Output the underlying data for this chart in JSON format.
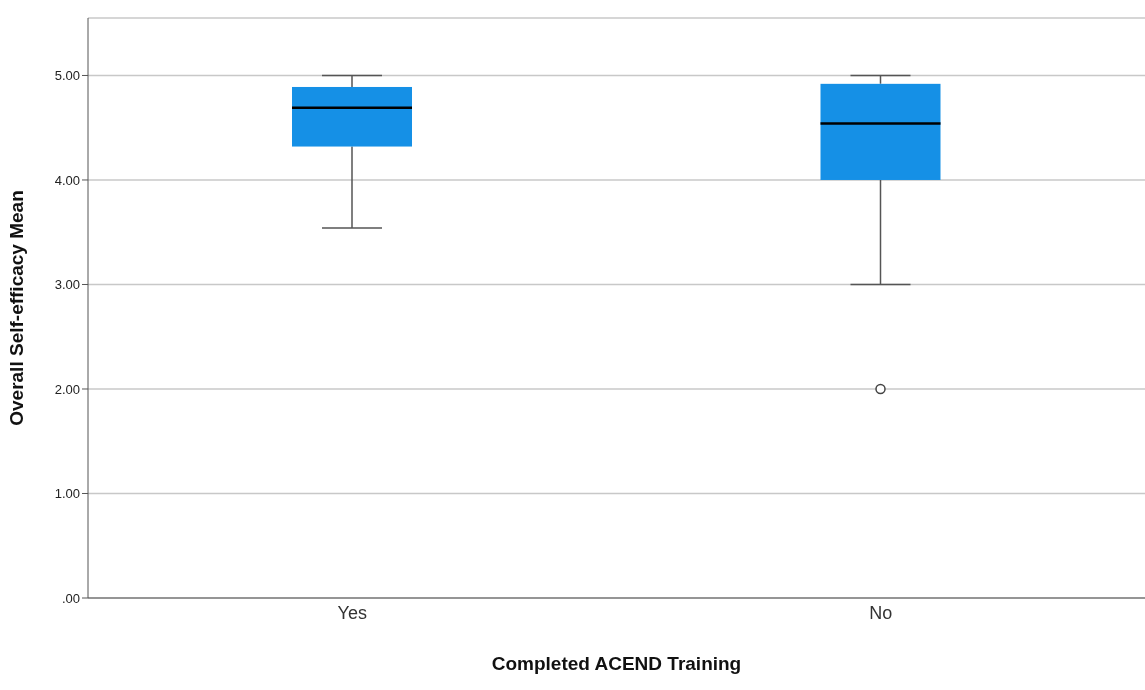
{
  "chart_data": {
    "type": "box",
    "xlabel": "Completed ACEND Training",
    "ylabel": "Overall Self-efficacy Mean",
    "categories": [
      "Yes",
      "No"
    ],
    "color": "#1590e6",
    "boxes": [
      {
        "low": 3.54,
        "q1": 4.32,
        "median": 4.69,
        "q3": 4.89,
        "high": 5.0
      },
      {
        "low": 3.0,
        "q1": 4.0,
        "median": 4.54,
        "q3": 4.92,
        "high": 5.0,
        "outliers": [
          2.0
        ]
      }
    ],
    "ylim": [
      0,
      5.55
    ],
    "yticks": [
      {
        "value": 0,
        "label": ".00"
      },
      {
        "value": 1,
        "label": "1.00"
      },
      {
        "value": 2,
        "label": "2.00"
      },
      {
        "value": 3,
        "label": "3.00"
      },
      {
        "value": 4,
        "label": "4.00"
      },
      {
        "value": 5,
        "label": "5.00"
      }
    ],
    "grid": "y"
  }
}
